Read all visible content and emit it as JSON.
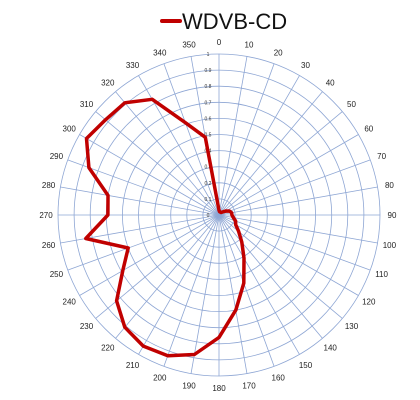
{
  "chart_data": {
    "type": "radar",
    "legend": {
      "position": "top",
      "entries": [
        "WDVB-CD"
      ]
    },
    "radial_ticks": [
      "0",
      "0.1",
      "0.2",
      "0.3",
      "0.4",
      "0.5",
      "0.6",
      "0.7",
      "0.8",
      "0.9",
      "1"
    ],
    "angle_labels": [
      "0",
      "10",
      "20",
      "30",
      "40",
      "50",
      "60",
      "70",
      "80",
      "90",
      "100",
      "110",
      "120",
      "130",
      "140",
      "150",
      "160",
      "170",
      "180",
      "190",
      "200",
      "210",
      "220",
      "230",
      "240",
      "250",
      "260",
      "270",
      "280",
      "290",
      "300",
      "310",
      "320",
      "330",
      "340",
      "350"
    ],
    "rmax": 1,
    "series": [
      {
        "name": "WDVB-CD",
        "color": "#c00000",
        "angles": [
          0,
          10,
          20,
          30,
          40,
          50,
          60,
          70,
          80,
          90,
          100,
          110,
          120,
          130,
          140,
          150,
          160,
          170,
          180,
          190,
          200,
          210,
          220,
          230,
          240,
          250,
          260,
          270,
          280,
          290,
          300,
          310,
          320,
          330,
          340,
          350
        ],
        "values": [
          0.03,
          0.02,
          0.02,
          0.02,
          0.02,
          0.03,
          0.05,
          0.07,
          0.08,
          0.08,
          0.09,
          0.11,
          0.12,
          0.16,
          0.22,
          0.31,
          0.45,
          0.6,
          0.76,
          0.88,
          0.93,
          0.94,
          0.91,
          0.83,
          0.69,
          0.6,
          0.84,
          0.69,
          0.7,
          0.86,
          0.95,
          0.92,
          0.91,
          0.83,
          0.61,
          0.49
        ]
      }
    ]
  }
}
